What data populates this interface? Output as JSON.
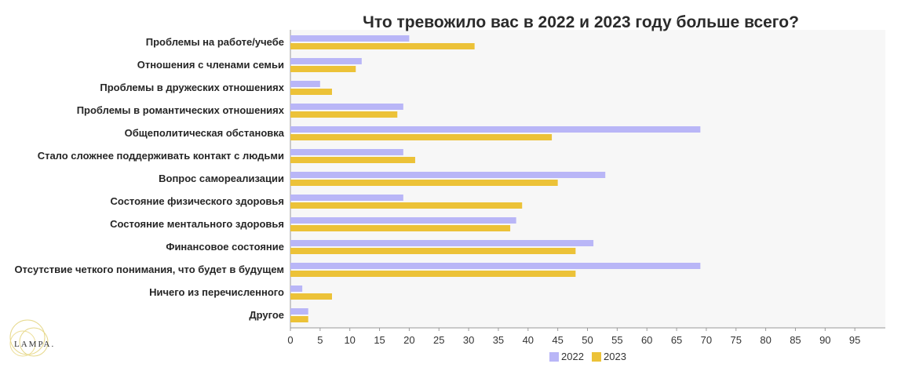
{
  "chart_data": {
    "type": "bar",
    "orientation": "horizontal",
    "title": "Что тревожило вас в 2022 и 2023 году больше всего?",
    "categories": [
      "Проблемы на работе/учебе",
      "Отношения с членами семьи",
      "Проблемы в дружеских отношениях",
      "Проблемы в романтических отношениях",
      "Общеполитическая обстановка",
      "Стало сложнее поддерживать контакт с людьми",
      "Вопрос самореализации",
      "Состояние физического здоровья",
      "Состояние ментального здоровья",
      "Финансовое состояние",
      "Отсутствие четкого понимания, что будет в будущем",
      "Ничего из перечисленного",
      "Другое"
    ],
    "series": [
      {
        "name": "2022",
        "color": "#b9b6f7",
        "values": [
          20,
          12,
          5,
          19,
          69,
          19,
          53,
          19,
          38,
          51,
          69,
          2,
          3
        ]
      },
      {
        "name": "2023",
        "color": "#ecc238",
        "values": [
          31,
          11,
          7,
          18,
          44,
          21,
          45,
          39,
          37,
          48,
          48,
          7,
          3
        ]
      }
    ],
    "xlim": [
      0,
      100
    ],
    "xticks": [
      0,
      5,
      10,
      15,
      20,
      25,
      30,
      35,
      40,
      45,
      50,
      55,
      60,
      65,
      70,
      75,
      80,
      85,
      90,
      95
    ],
    "grid": false,
    "legend_position": "bottom"
  },
  "logo": {
    "text": "LAMPA."
  }
}
